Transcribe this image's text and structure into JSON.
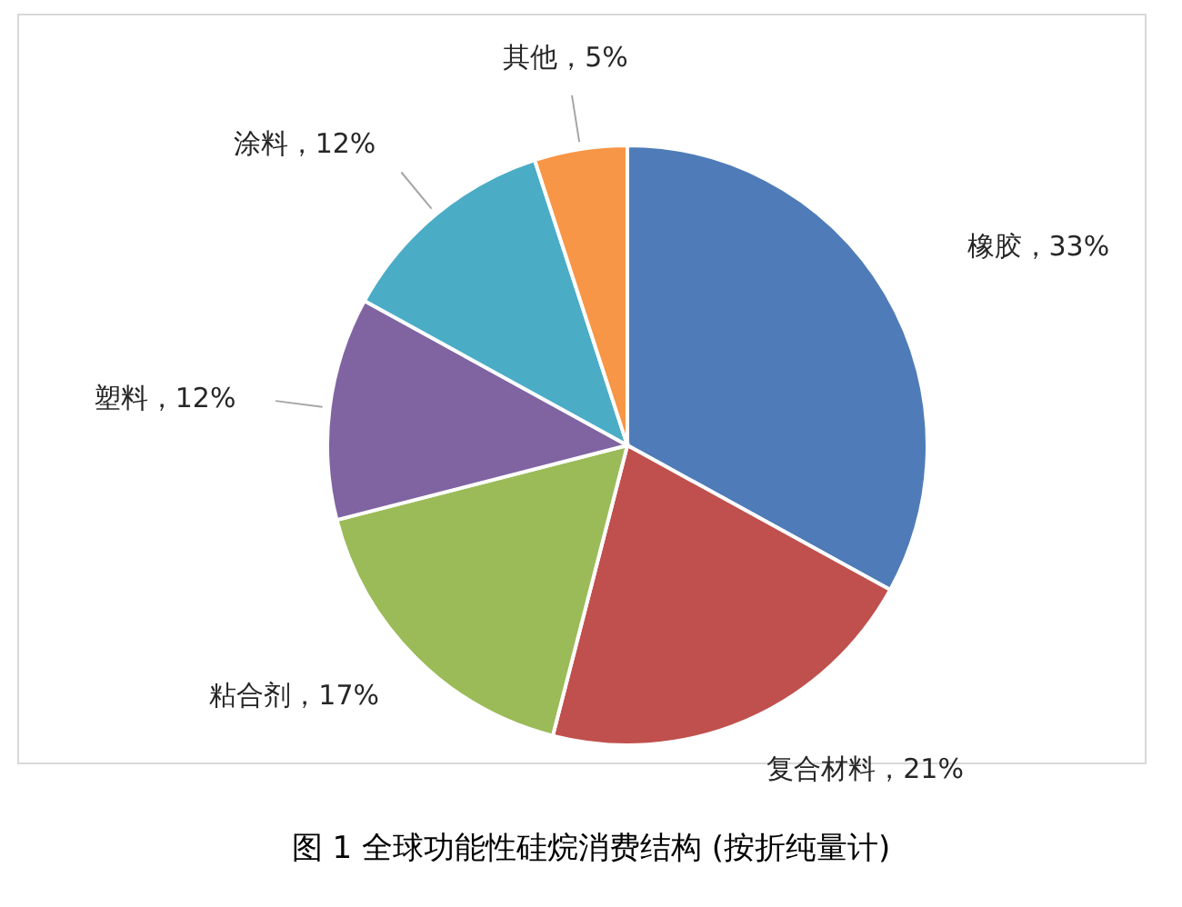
{
  "chart_data": {
    "type": "pie",
    "title": "图 1  全球功能性硅烷消费结构 (按折纯量计)",
    "categories": [
      "橡胶",
      "复合材料",
      "粘合剂",
      "塑料",
      "涂料",
      "其他"
    ],
    "values": [
      33,
      21,
      17,
      12,
      12,
      5
    ],
    "value_labels": [
      "33%",
      "21%",
      "17%",
      "12%",
      "12%",
      "5%"
    ],
    "colors": [
      "#4f7cb8",
      "#c0504d",
      "#9bbb59",
      "#8064a2",
      "#4bacc6",
      "#f79646"
    ],
    "legend": false
  }
}
